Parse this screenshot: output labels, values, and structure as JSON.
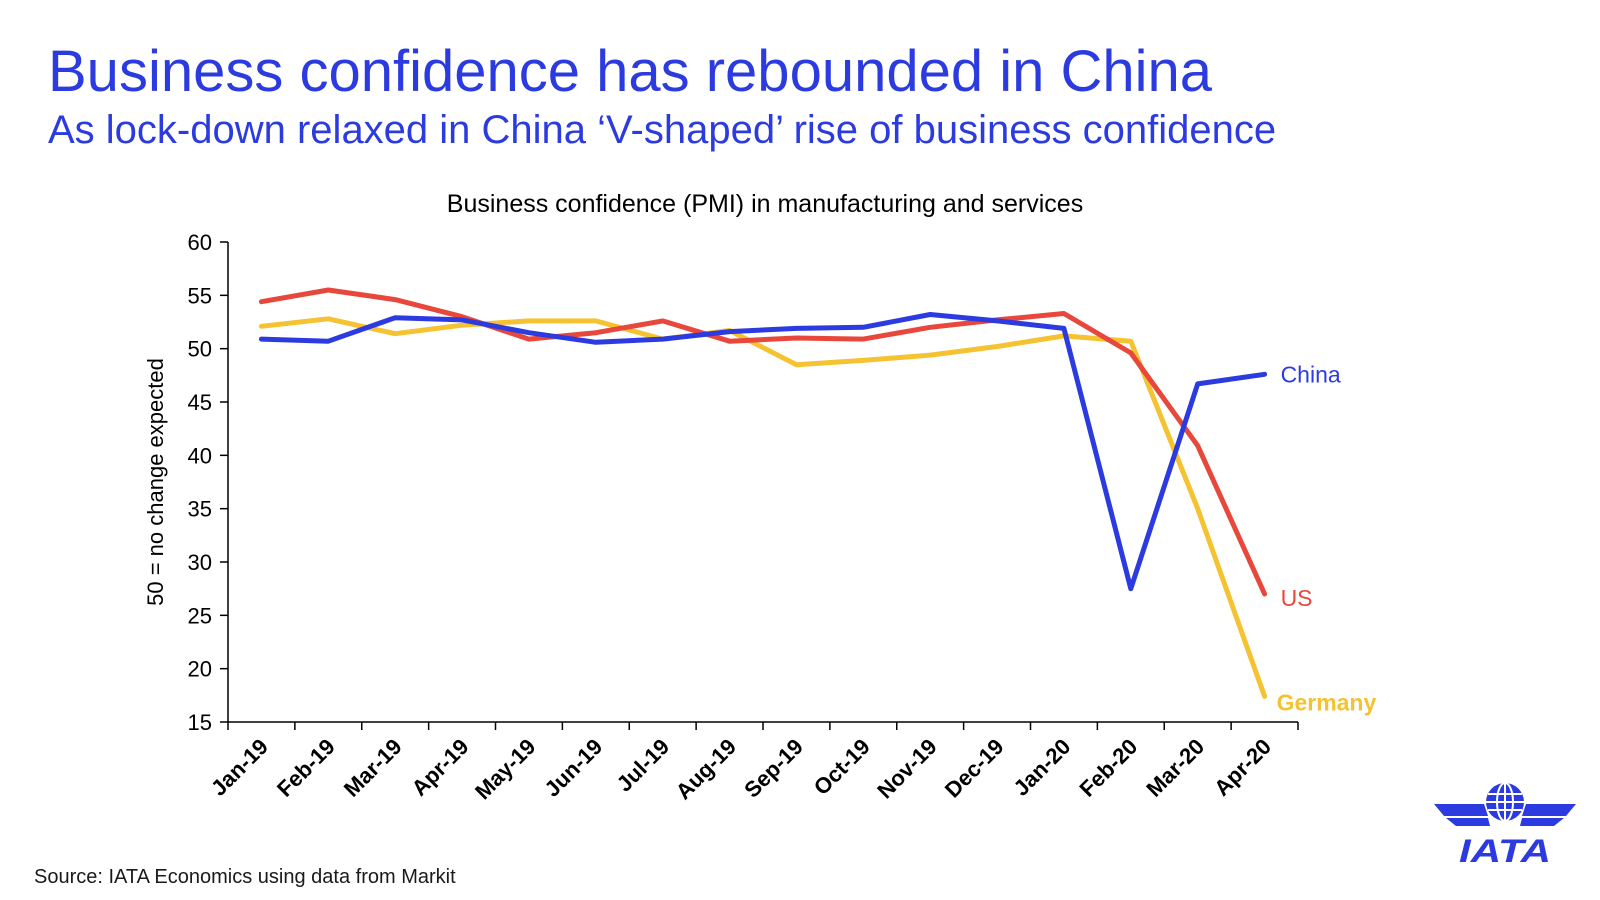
{
  "slide": {
    "title": "Business confidence has rebounded in China",
    "subtitle": "As lock-down relaxed in China ‘V-shaped’ rise of business confidence",
    "source": "Source: IATA Economics using data from Markit",
    "logo_text": "IATA"
  },
  "colors": {
    "heading": "#2b3be0",
    "China": "#2b3be0",
    "US": "#e8473c",
    "Germany": "#f5c232",
    "axis": "#000000"
  },
  "chart_data": {
    "type": "line",
    "title": "Business confidence (PMI) in manufacturing and services",
    "xlabel": "",
    "ylabel": "50 = no change expected",
    "ylim": [
      15,
      60
    ],
    "yticks": [
      15,
      20,
      25,
      30,
      35,
      40,
      45,
      50,
      55,
      60
    ],
    "grid": false,
    "legend": "inline-right",
    "categories": [
      "Jan-19",
      "Feb-19",
      "Mar-19",
      "Apr-19",
      "May-19",
      "Jun-19",
      "Jul-19",
      "Aug-19",
      "Sep-19",
      "Oct-19",
      "Nov-19",
      "Dec-19",
      "Jan-20",
      "Feb-20",
      "Mar-20",
      "Apr-20"
    ],
    "series": [
      {
        "name": "China",
        "values": [
          50.9,
          50.7,
          52.9,
          52.7,
          51.5,
          50.6,
          50.9,
          51.6,
          51.9,
          52.0,
          53.2,
          52.6,
          51.9,
          27.5,
          46.7,
          47.6
        ]
      },
      {
        "name": "US",
        "values": [
          54.4,
          55.5,
          54.6,
          53.0,
          50.9,
          51.5,
          52.6,
          50.7,
          51.0,
          50.9,
          52.0,
          52.7,
          53.3,
          49.6,
          40.9,
          27.0
        ]
      },
      {
        "name": "Germany",
        "values": [
          52.1,
          52.8,
          51.4,
          52.2,
          52.6,
          52.6,
          50.9,
          51.7,
          48.5,
          48.9,
          49.4,
          50.2,
          51.2,
          50.7,
          35.0,
          17.4
        ]
      }
    ]
  }
}
